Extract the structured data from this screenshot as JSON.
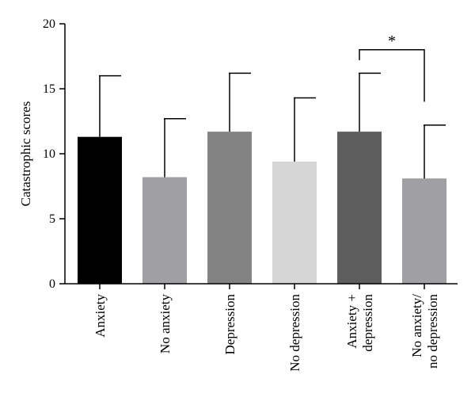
{
  "chart_data": {
    "type": "bar",
    "title": "",
    "xlabel": "",
    "ylabel": "Catastrophic scores",
    "ylim": [
      0,
      20
    ],
    "yticks": [
      0,
      5,
      10,
      15,
      20
    ],
    "grid": false,
    "categories": [
      [
        "Anxiety"
      ],
      [
        "No anxiety"
      ],
      [
        "Depression"
      ],
      [
        "No depression"
      ],
      [
        "Anxiety +",
        "depression"
      ],
      [
        "No anxiety/",
        "no depression"
      ]
    ],
    "values": [
      11.3,
      8.2,
      11.7,
      9.4,
      11.7,
      8.1
    ],
    "error_upper": [
      16.0,
      12.7,
      16.2,
      14.3,
      16.2,
      12.2
    ],
    "colors": [
      "#000000",
      "#a0a0a4",
      "#838383",
      "#d6d6d6",
      "#5e5e5e",
      "#a0a0a4"
    ],
    "annotation": {
      "text": "*",
      "between": [
        4,
        5
      ],
      "level": 18.0,
      "right_drop_to": 14.0
    }
  }
}
